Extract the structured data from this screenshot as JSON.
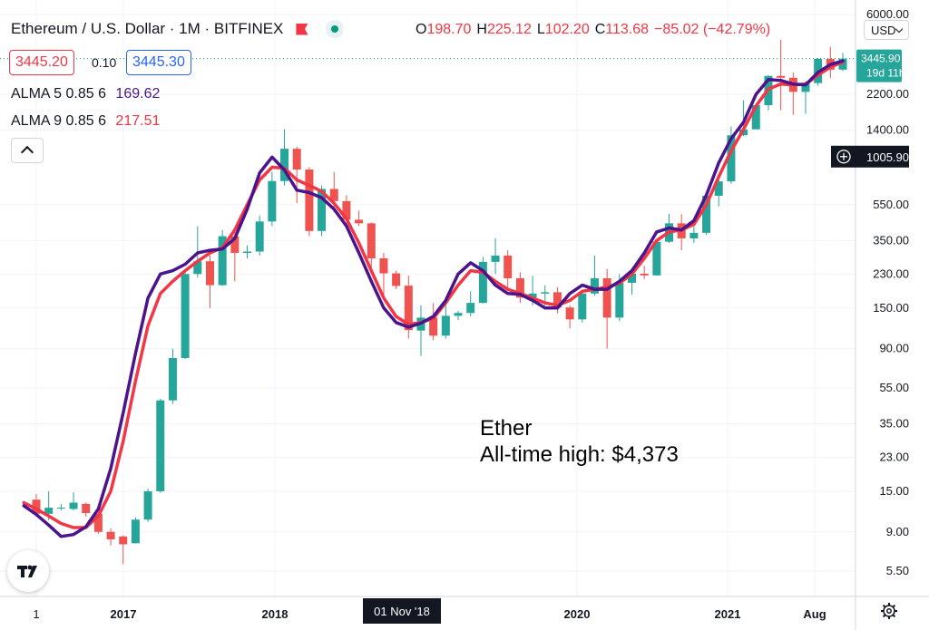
{
  "header": {
    "title": "Ethereum / U.S. Dollar · 1M · BITFINEX",
    "ohlc": [
      {
        "k": "O",
        "v": "198.70"
      },
      {
        "k": "H",
        "v": "225.12"
      },
      {
        "k": "L",
        "v": "102.20"
      },
      {
        "k": "C",
        "v": "113.68"
      },
      {
        "k": "",
        "v": "−85.02 (−42.79%)"
      }
    ],
    "bid": "3445.20",
    "spread": "0.10",
    "ask": "3445.30",
    "currency": "USD"
  },
  "indicators": [
    {
      "label": "ALMA 5 0.85 6",
      "value": "169.62",
      "color": "#4a148c"
    },
    {
      "label": "ALMA 9 0.85 6",
      "value": "217.51",
      "color": "#f23645"
    }
  ],
  "annotation": {
    "line1": "Ether",
    "line2": "All-time high: $4,373"
  },
  "price_axis": {
    "labels": [
      "6000.00",
      "2200.00",
      "1400.00",
      "550.00",
      "350.00",
      "230.00",
      "150.00",
      "90.00",
      "55.00",
      "35.00",
      "23.00",
      "15.00",
      "9.00",
      "5.50"
    ],
    "last_price": "3445.90",
    "countdown": "19d 11h",
    "crosshair_price": "1005.90"
  },
  "time_axis": {
    "labels": [
      "1",
      "2017",
      "2018",
      "2020",
      "2021",
      "Aug"
    ],
    "crosshair_label": "01 Nov '18"
  },
  "colors": {
    "up": "#26a69a",
    "down": "#ef5350",
    "alma5": "#4a148c",
    "alma9": "#f23645",
    "grid": "#f0f3fa"
  },
  "chart_data": {
    "type": "candlestick",
    "title": "Ethereum / U.S. Dollar · 1M · BITFINEX",
    "scale": "log",
    "ylim": [
      4.5,
      7000
    ],
    "candles": [
      {
        "t": "2016-05",
        "o": 13.5,
        "h": 14.5,
        "l": 10.9,
        "c": 11.3
      },
      {
        "t": "2016-06",
        "o": 11.3,
        "h": 15.0,
        "l": 10.4,
        "c": 12.2
      },
      {
        "t": "2016-07",
        "o": 12.2,
        "h": 12.8,
        "l": 11.8,
        "c": 12.2
      },
      {
        "t": "2016-08",
        "o": 12.0,
        "h": 14.8,
        "l": 11.8,
        "c": 13.0
      },
      {
        "t": "2016-09",
        "o": 12.8,
        "h": 13.0,
        "l": 10.9,
        "c": 11.4
      },
      {
        "t": "2016-10",
        "o": 11.3,
        "h": 11.5,
        "l": 8.8,
        "c": 9.0
      },
      {
        "t": "2016-11",
        "o": 9.0,
        "h": 9.4,
        "l": 7.6,
        "c": 8.2
      },
      {
        "t": "2016-12",
        "o": 8.5,
        "h": 8.6,
        "l": 6.0,
        "c": 7.7
      },
      {
        "t": "2017-01",
        "o": 7.8,
        "h": 10.8,
        "l": 7.8,
        "c": 10.5
      },
      {
        "t": "2017-02",
        "o": 10.5,
        "h": 15.5,
        "l": 10.2,
        "c": 15.0
      },
      {
        "t": "2017-03",
        "o": 15.0,
        "h": 48.0,
        "l": 14.7,
        "c": 47.0
      },
      {
        "t": "2017-04",
        "o": 47.0,
        "h": 90.0,
        "l": 45.0,
        "c": 80.0
      },
      {
        "t": "2017-05",
        "o": 80.0,
        "h": 240.0,
        "l": 79.0,
        "c": 230.0
      },
      {
        "t": "2017-06",
        "o": 230.0,
        "h": 420.0,
        "l": 220.0,
        "c": 270.0
      },
      {
        "t": "2017-07",
        "o": 270.0,
        "h": 290.0,
        "l": 150.0,
        "c": 200.0
      },
      {
        "t": "2017-08",
        "o": 200.0,
        "h": 400.0,
        "l": 198.0,
        "c": 370.0
      },
      {
        "t": "2017-09",
        "o": 370.0,
        "h": 400.0,
        "l": 210.0,
        "c": 300.0
      },
      {
        "t": "2017-10",
        "o": 300.0,
        "h": 330.0,
        "l": 280.0,
        "c": 305.0
      },
      {
        "t": "2017-11",
        "o": 305.0,
        "h": 480.0,
        "l": 290.0,
        "c": 445.0
      },
      {
        "t": "2017-12",
        "o": 445.0,
        "h": 830.0,
        "l": 420.0,
        "c": 740.0
      },
      {
        "t": "2018-01",
        "o": 740.0,
        "h": 1420.0,
        "l": 700.0,
        "c": 1110.0
      },
      {
        "t": "2018-02",
        "o": 1110.0,
        "h": 1140.0,
        "l": 560.0,
        "c": 855.0
      },
      {
        "t": "2018-03",
        "o": 855.0,
        "h": 880.0,
        "l": 370.0,
        "c": 395.0
      },
      {
        "t": "2018-04",
        "o": 395.0,
        "h": 700.0,
        "l": 370.0,
        "c": 670.0
      },
      {
        "t": "2018-05",
        "o": 670.0,
        "h": 830.0,
        "l": 500.0,
        "c": 575.0
      },
      {
        "t": "2018-06",
        "o": 575.0,
        "h": 620.0,
        "l": 410.0,
        "c": 455.0
      },
      {
        "t": "2018-07",
        "o": 455.0,
        "h": 510.0,
        "l": 420.0,
        "c": 435.0
      },
      {
        "t": "2018-08",
        "o": 435.0,
        "h": 440.0,
        "l": 250.0,
        "c": 280.0
      },
      {
        "t": "2018-09",
        "o": 280.0,
        "h": 300.0,
        "l": 170.0,
        "c": 232.0
      },
      {
        "t": "2018-10",
        "o": 232.0,
        "h": 240.0,
        "l": 190.0,
        "c": 198.0
      },
      {
        "t": "2018-11",
        "o": 198.7,
        "h": 225.12,
        "l": 102.2,
        "c": 113.68
      },
      {
        "t": "2018-12",
        "o": 113.0,
        "h": 155.0,
        "l": 82.0,
        "c": 133.0
      },
      {
        "t": "2019-01",
        "o": 133.0,
        "h": 160.0,
        "l": 100.0,
        "c": 106.0
      },
      {
        "t": "2019-02",
        "o": 106.0,
        "h": 165.0,
        "l": 102.0,
        "c": 136.0
      },
      {
        "t": "2019-03",
        "o": 136.0,
        "h": 145.0,
        "l": 129.0,
        "c": 141.0
      },
      {
        "t": "2019-04",
        "o": 141.0,
        "h": 185.0,
        "l": 135.0,
        "c": 160.0
      },
      {
        "t": "2019-05",
        "o": 160.0,
        "h": 285.0,
        "l": 159.0,
        "c": 268.0
      },
      {
        "t": "2019-06",
        "o": 268.0,
        "h": 360.0,
        "l": 230.0,
        "c": 290.0
      },
      {
        "t": "2019-07",
        "o": 290.0,
        "h": 310.0,
        "l": 190.0,
        "c": 218.0
      },
      {
        "t": "2019-08",
        "o": 218.0,
        "h": 235.0,
        "l": 160.0,
        "c": 171.0
      },
      {
        "t": "2019-09",
        "o": 171.0,
        "h": 225.0,
        "l": 155.0,
        "c": 180.0
      },
      {
        "t": "2019-10",
        "o": 180.0,
        "h": 200.0,
        "l": 155.0,
        "c": 183.0
      },
      {
        "t": "2019-11",
        "o": 183.0,
        "h": 195.0,
        "l": 140.0,
        "c": 151.0
      },
      {
        "t": "2019-12",
        "o": 151.0,
        "h": 155.0,
        "l": 116.0,
        "c": 130.0
      },
      {
        "t": "2020-01",
        "o": 130.0,
        "h": 185.0,
        "l": 125.0,
        "c": 180.0
      },
      {
        "t": "2020-02",
        "o": 180.0,
        "h": 290.0,
        "l": 175.0,
        "c": 218.0
      },
      {
        "t": "2020-03",
        "o": 218.0,
        "h": 245.0,
        "l": 90.0,
        "c": 133.0
      },
      {
        "t": "2020-04",
        "o": 133.0,
        "h": 230.0,
        "l": 127.0,
        "c": 206.0
      },
      {
        "t": "2020-05",
        "o": 206.0,
        "h": 245.0,
        "l": 178.0,
        "c": 231.0
      },
      {
        "t": "2020-06",
        "o": 231.0,
        "h": 255.0,
        "l": 216.0,
        "c": 226.0
      },
      {
        "t": "2020-07",
        "o": 226.0,
        "h": 350.0,
        "l": 225.0,
        "c": 345.0
      },
      {
        "t": "2020-08",
        "o": 345.0,
        "h": 490.0,
        "l": 340.0,
        "c": 435.0
      },
      {
        "t": "2020-09",
        "o": 435.0,
        "h": 488.0,
        "l": 310.0,
        "c": 360.0
      },
      {
        "t": "2020-10",
        "o": 360.0,
        "h": 420.0,
        "l": 340.0,
        "c": 386.0
      },
      {
        "t": "2020-11",
        "o": 386.0,
        "h": 620.0,
        "l": 376.0,
        "c": 615.0
      },
      {
        "t": "2020-12",
        "o": 615.0,
        "h": 750.0,
        "l": 538.0,
        "c": 737.0
      },
      {
        "t": "2021-01",
        "o": 737.0,
        "h": 1470.0,
        "l": 715.0,
        "c": 1315.0
      },
      {
        "t": "2021-02",
        "o": 1315.0,
        "h": 2040.0,
        "l": 1300.0,
        "c": 1417.0
      },
      {
        "t": "2021-03",
        "o": 1417.0,
        "h": 1950.0,
        "l": 1440.0,
        "c": 1920.0
      },
      {
        "t": "2021-04",
        "o": 1920.0,
        "h": 2800.0,
        "l": 1800.0,
        "c": 2773.0
      },
      {
        "t": "2021-05",
        "o": 2773.0,
        "h": 4373.0,
        "l": 1800.0,
        "c": 2710.0
      },
      {
        "t": "2021-06",
        "o": 2710.0,
        "h": 2900.0,
        "l": 1700.0,
        "c": 2270.0
      },
      {
        "t": "2021-07",
        "o": 2270.0,
        "h": 2600.0,
        "l": 1720.0,
        "c": 2535.0
      },
      {
        "t": "2021-08",
        "o": 2535.0,
        "h": 3470.0,
        "l": 2450.0,
        "c": 3434.0
      },
      {
        "t": "2021-09",
        "o": 3434.0,
        "h": 4000.0,
        "l": 2700.0,
        "c": 3000.0
      },
      {
        "t": "2021-10",
        "o": 3000.0,
        "h": 3700.0,
        "l": 2950.0,
        "c": 3445.9
      }
    ],
    "alma5": [
      12.5,
      11.2,
      9.8,
      8.5,
      8.7,
      9.6,
      12.0,
      20.0,
      40.0,
      85.0,
      170.0,
      230.0,
      240.0,
      260.0,
      300.0,
      310.0,
      315.0,
      360.0,
      520.0,
      820.0,
      1000.0,
      850.0,
      660.0,
      640.0,
      600.0,
      520.0,
      420.0,
      300.0,
      210.0,
      150.0,
      125.0,
      118.0,
      124.0,
      135.0,
      165.0,
      230.0,
      265.0,
      240.0,
      200.0,
      180.0,
      178.0,
      165.0,
      150.0,
      150.0,
      180.0,
      200.0,
      190.0,
      190.0,
      210.0,
      240.0,
      300.0,
      390.0,
      410.0,
      400.0,
      450.0,
      620.0,
      930.0,
      1260.0,
      1550.0,
      2200.0,
      2650.0,
      2620.0,
      2500.0,
      2480.0,
      2900.0,
      3200.0,
      3350.0
    ],
    "alma9": [
      13.0,
      12.0,
      11.0,
      10.0,
      9.5,
      9.5,
      11.0,
      15.0,
      28.0,
      60.0,
      120.0,
      180.0,
      210.0,
      240.0,
      270.0,
      300.0,
      320.0,
      400.0,
      550.0,
      750.0,
      880.0,
      870.0,
      750.0,
      700.0,
      650.0,
      560.0,
      460.0,
      340.0,
      240.0,
      170.0,
      135.0,
      122.0,
      125.0,
      132.0,
      160.0,
      200.0,
      240.0,
      235.0,
      210.0,
      190.0,
      180.0,
      170.0,
      160.0,
      155.0,
      165.0,
      185.0,
      190.0,
      195.0,
      205.0,
      230.0,
      280.0,
      350.0,
      390.0,
      400.0,
      430.0,
      550.0,
      780.0,
      1080.0,
      1420.0,
      1900.0,
      2350.0,
      2500.0,
      2480.0,
      2500.0,
      2800.0,
      3100.0,
      3300.0
    ]
  }
}
